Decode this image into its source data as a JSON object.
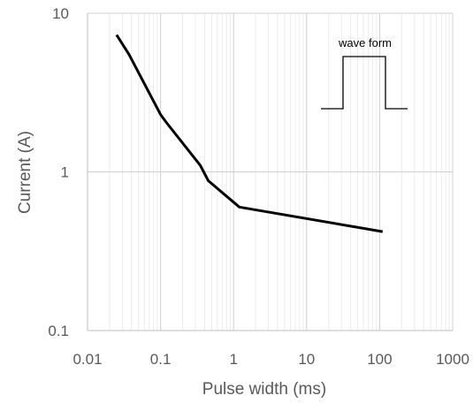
{
  "chart_data": {
    "type": "line",
    "xscale": "log",
    "yscale": "log",
    "xlim": [
      0.01,
      1000
    ],
    "ylim": [
      0.1,
      10
    ],
    "xlabel": "Pulse width (ms)",
    "ylabel": "Current (A)",
    "x_ticks": [
      "0.01",
      "0.1",
      "1",
      "10",
      "100",
      "1000"
    ],
    "y_ticks": [
      "0.1",
      "1",
      "10"
    ],
    "grid": true,
    "series": [
      {
        "color": "#000000",
        "points": [
          {
            "x": 0.025,
            "y": 7.3
          },
          {
            "x": 0.037,
            "y": 5.5
          },
          {
            "x": 0.1,
            "y": 2.3
          },
          {
            "x": 0.12,
            "y": 2.05
          },
          {
            "x": 0.35,
            "y": 1.1
          },
          {
            "x": 0.45,
            "y": 0.88
          },
          {
            "x": 1.2,
            "y": 0.6
          },
          {
            "x": 110,
            "y": 0.42
          }
        ]
      }
    ],
    "inset": {
      "label": "wave form",
      "icon": "square-pulse-waveform"
    }
  }
}
